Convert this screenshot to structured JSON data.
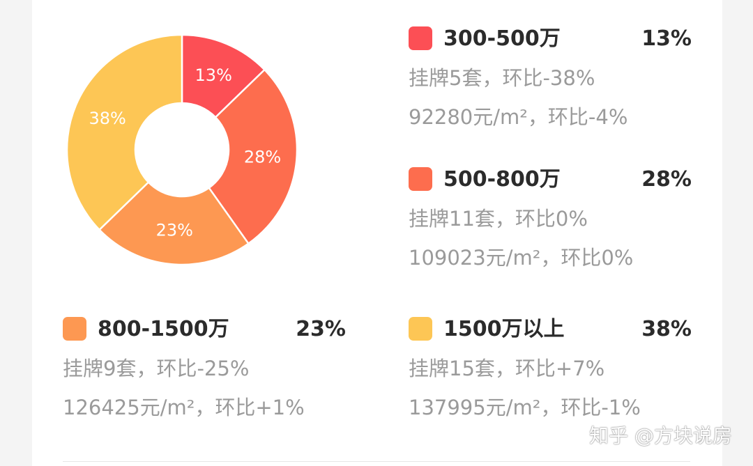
{
  "chart_data": {
    "type": "pie",
    "categories": [
      "300-500万",
      "500-800万",
      "800-1500万",
      "1500万以上"
    ],
    "values": [
      13,
      28,
      23,
      38
    ],
    "slice_labels": [
      "13%",
      "28%",
      "23%",
      "38%"
    ],
    "colors": [
      "#fc4f55",
      "#fd6d4e",
      "#fd9852",
      "#fdc655"
    ],
    "title": "",
    "donut": true
  },
  "legend": {
    "items": [
      {
        "name": "300-500万",
        "pct": "13%",
        "line1": "挂牌5套，环比-38%",
        "line2": "92280元/m²，环比-4%",
        "color": "#fc4f55"
      },
      {
        "name": "500-800万",
        "pct": "28%",
        "line1": "挂牌11套，环比0%",
        "line2": "109023元/m²，环比0%",
        "color": "#fd6d4e"
      },
      {
        "name": "800-1500万",
        "pct": "23%",
        "line1": "挂牌9套，环比-25%",
        "line2": "126425元/m²，环比+1%",
        "color": "#fd9852"
      },
      {
        "name": "1500万以上",
        "pct": "38%",
        "line1": "挂牌15套，环比+7%",
        "line2": "137995元/m²，环比-1%",
        "color": "#fdc655"
      }
    ]
  },
  "watermark": "知乎 @方块说房"
}
